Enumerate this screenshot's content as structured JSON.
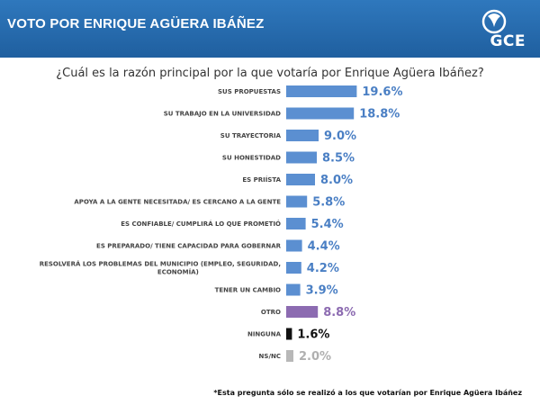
{
  "header": {
    "title": "VOTO POR ENRIQUE AGÜERA IBÁÑEZ",
    "logo_text": "GCE",
    "logo_icon": "gce-logo-icon"
  },
  "colors": {
    "header_bg": "#2a6db0",
    "bar_default": "#5b8fd1",
    "bar_otro": "#8c6bb1",
    "bar_ninguna": "#111111",
    "bar_nsnc": "#b8b8b8"
  },
  "chart_data": {
    "type": "bar",
    "orientation": "horizontal",
    "title": "¿Cuál es la razón principal por la que votaría por Enrique Agüera Ibáñez?",
    "categories": [
      "SUS PROPUESTAS",
      "SU TRABAJO EN LA UNIVERSIDAD",
      "SU TRAYECTORIA",
      "SU HONESTIDAD",
      "ES PRIÍSTA",
      "APOYA A LA GENTE NECESITADA/ ES CERCANO A LA GENTE",
      "ES CONFIABLE/ CUMPLIRÁ LO QUE PROMETIÓ",
      "ES PREPARADO/ TIENE CAPACIDAD PARA GOBERNAR",
      "RESOLVERÁ LOS PROBLEMAS DEL MUNICIPIO (EMPLEO, SEGURIDAD, ECONOMÍA)",
      "TENER UN CAMBIO",
      "OTRO",
      "NINGUNA",
      "NS/NC"
    ],
    "values": [
      19.6,
      18.8,
      9.0,
      8.5,
      8.0,
      5.8,
      5.4,
      4.4,
      4.2,
      3.9,
      8.8,
      1.6,
      2.0
    ],
    "value_labels": [
      "19.6%",
      "18.8%",
      "9.0%",
      "8.5%",
      "8.0%",
      "5.8%",
      "5.4%",
      "4.4%",
      "4.2%",
      "3.9%",
      "8.8%",
      "1.6%",
      "2.0%"
    ],
    "bar_colors": [
      "#5b8fd1",
      "#5b8fd1",
      "#5b8fd1",
      "#5b8fd1",
      "#5b8fd1",
      "#5b8fd1",
      "#5b8fd1",
      "#5b8fd1",
      "#5b8fd1",
      "#5b8fd1",
      "#8c6bb1",
      "#111111",
      "#b8b8b8"
    ],
    "label_colors": [
      "#4a7fc4",
      "#4a7fc4",
      "#4a7fc4",
      "#4a7fc4",
      "#4a7fc4",
      "#4a7fc4",
      "#4a7fc4",
      "#4a7fc4",
      "#4a7fc4",
      "#4a7fc4",
      "#8c6bb1",
      "#111111",
      "#b0b0b0"
    ],
    "xlim": [
      0,
      20
    ],
    "grid": false,
    "legend": "none"
  },
  "footnote": "*Esta pregunta sólo se realizó a los que votarían por Enrique Agüera Ibáñez"
}
